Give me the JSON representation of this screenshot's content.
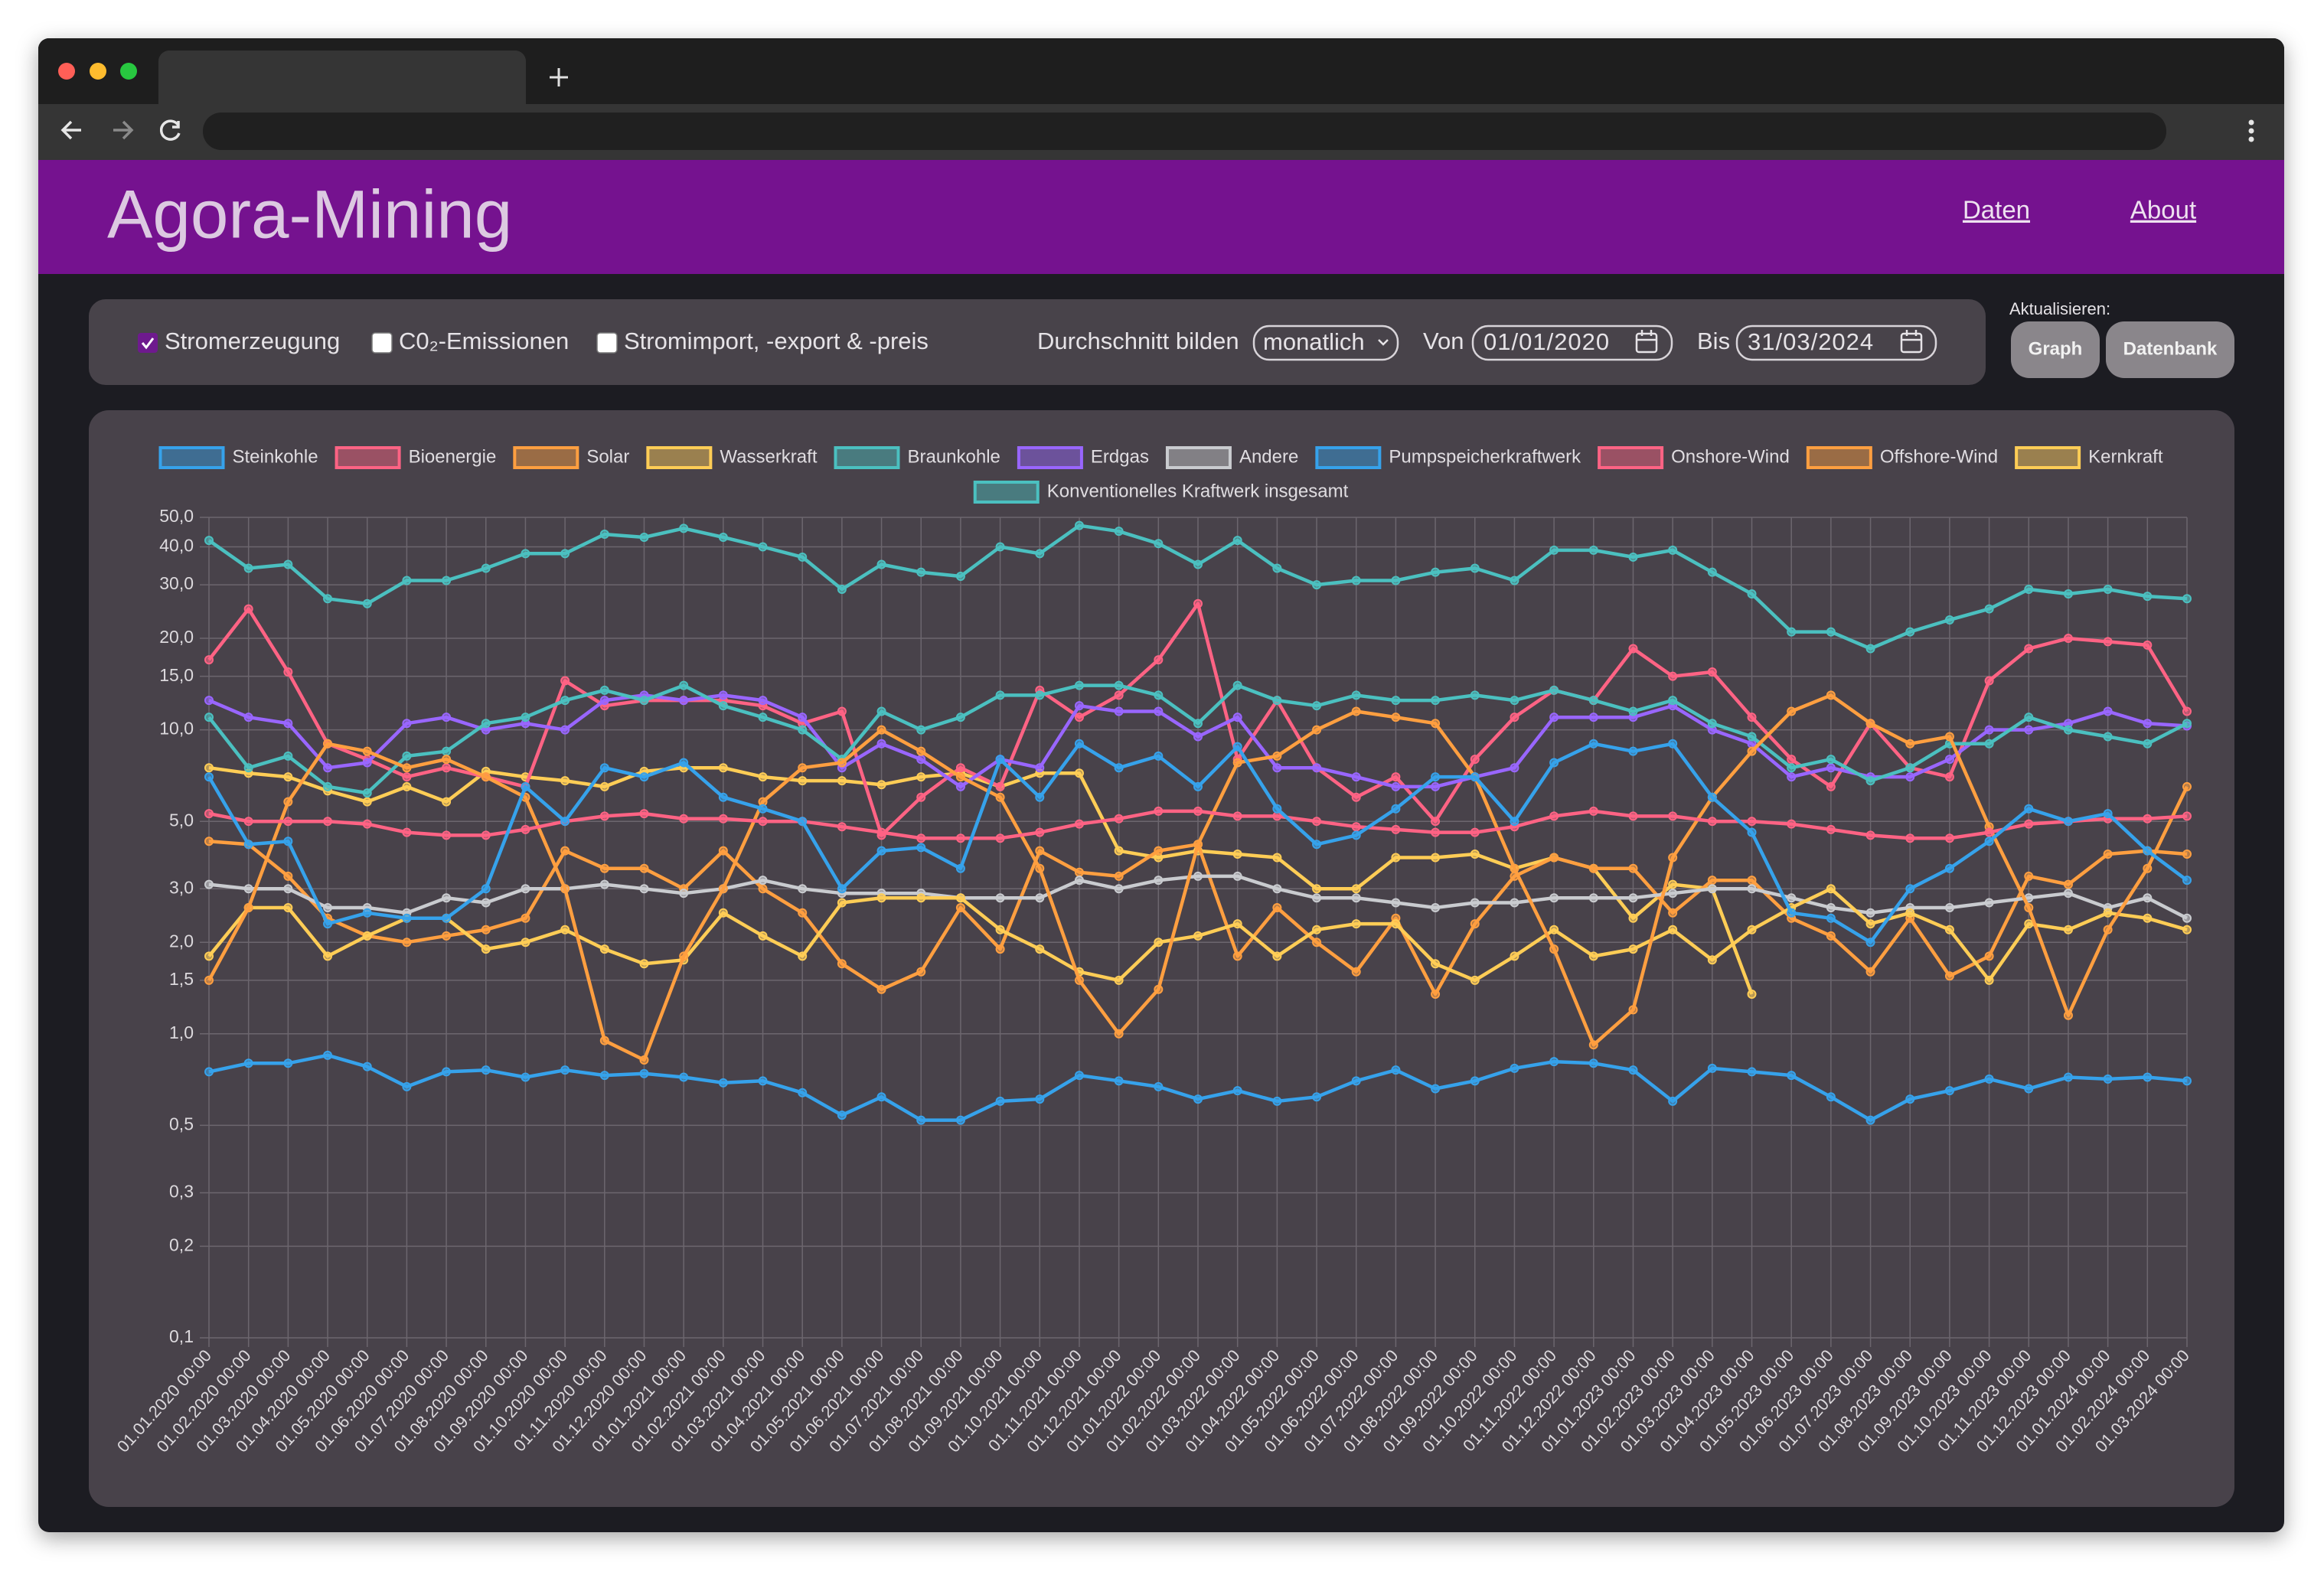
{
  "header": {
    "title": "Agora-Mining",
    "nav": [
      "Daten",
      "About"
    ]
  },
  "controls": {
    "checkboxes": [
      {
        "label": "Stromerzeugung",
        "checked": true
      },
      {
        "label": "C0₂-Emissionen",
        "checked": false
      },
      {
        "label": "Stromimport, -export & -preis",
        "checked": false
      }
    ],
    "average_label": "Durchschnitt bilden",
    "average_value": "monatlich",
    "from_label": "Von",
    "from_value": "01/01/2020",
    "to_label": "Bis",
    "to_value": "31/03/2024",
    "refresh_label": "Aktualisieren:",
    "buttons": [
      "Graph",
      "Datenbank"
    ]
  },
  "chart_data": {
    "type": "line",
    "yscale": "log",
    "grid": true,
    "legend": "top",
    "ylim": [
      0.1,
      50
    ],
    "yticks": [
      {
        "value": 0.1,
        "label": "0,1"
      },
      {
        "value": 0.2,
        "label": "0,2"
      },
      {
        "value": 0.3,
        "label": "0,3"
      },
      {
        "value": 0.5,
        "label": "0,5"
      },
      {
        "value": 1,
        "label": "1,0"
      },
      {
        "value": 1.5,
        "label": "1,5"
      },
      {
        "value": 2,
        "label": "2,0"
      },
      {
        "value": 3,
        "label": "3,0"
      },
      {
        "value": 5,
        "label": "5,0"
      },
      {
        "value": 10,
        "label": "10,0"
      },
      {
        "value": 15,
        "label": "15,0"
      },
      {
        "value": 20,
        "label": "20,0"
      },
      {
        "value": 30,
        "label": "30,0"
      },
      {
        "value": 40,
        "label": "40,0"
      },
      {
        "value": 50,
        "label": "50,0"
      }
    ],
    "categories": [
      "01.01.2020 00:00",
      "01.02.2020 00:00",
      "01.03.2020 00:00",
      "01.04.2020 00:00",
      "01.05.2020 00:00",
      "01.06.2020 00:00",
      "01.07.2020 00:00",
      "01.08.2020 00:00",
      "01.09.2020 00:00",
      "01.10.2020 00:00",
      "01.11.2020 00:00",
      "01.12.2020 00:00",
      "01.01.2021 00:00",
      "01.02.2021 00:00",
      "01.03.2021 00:00",
      "01.04.2021 00:00",
      "01.05.2021 00:00",
      "01.06.2021 00:00",
      "01.07.2021 00:00",
      "01.08.2021 00:00",
      "01.09.2021 00:00",
      "01.10.2021 00:00",
      "01.11.2021 00:00",
      "01.12.2021 00:00",
      "01.01.2022 00:00",
      "01.02.2022 00:00",
      "01.03.2022 00:00",
      "01.04.2022 00:00",
      "01.05.2022 00:00",
      "01.06.2022 00:00",
      "01.07.2022 00:00",
      "01.08.2022 00:00",
      "01.09.2022 00:00",
      "01.10.2022 00:00",
      "01.11.2022 00:00",
      "01.12.2022 00:00",
      "01.01.2023 00:00",
      "01.02.2023 00:00",
      "01.03.2023 00:00",
      "01.04.2023 00:00",
      "01.05.2023 00:00",
      "01.06.2023 00:00",
      "01.07.2023 00:00",
      "01.08.2023 00:00",
      "01.09.2023 00:00",
      "01.10.2023 00:00",
      "01.11.2023 00:00",
      "01.12.2023 00:00",
      "01.01.2024 00:00",
      "01.02.2024 00:00",
      "01.03.2024 00:00"
    ],
    "series": [
      {
        "name": "Steinkohle",
        "color": "#36a2eb",
        "values": [
          7,
          4.2,
          4.3,
          2.3,
          2.5,
          2.4,
          2.4,
          3,
          6.5,
          5,
          7.5,
          7,
          7.8,
          6,
          5.5,
          5,
          3,
          4,
          4.1,
          3.5,
          8,
          6,
          9,
          7.5,
          8.2,
          6.5,
          8.8,
          5.5,
          4.2,
          4.5,
          5.5,
          7,
          7,
          5,
          7.8,
          9,
          8.5,
          9,
          6,
          4.6,
          2.5,
          2.4,
          2,
          3,
          3.5,
          4.3,
          5.5,
          5,
          5.3,
          4,
          3.2
        ]
      },
      {
        "name": "Bioenergie",
        "color": "#ff6384",
        "values": [
          5.3,
          5,
          5,
          5,
          4.9,
          4.6,
          4.5,
          4.5,
          4.7,
          5,
          5.2,
          5.3,
          5.1,
          5.1,
          5,
          5,
          4.8,
          4.6,
          4.4,
          4.4,
          4.4,
          4.6,
          4.9,
          5.1,
          5.4,
          5.4,
          5.2,
          5.2,
          5,
          4.8,
          4.7,
          4.6,
          4.6,
          4.8,
          5.2,
          5.4,
          5.2,
          5.2,
          5,
          5,
          4.9,
          4.7,
          4.5,
          4.4,
          4.4,
          4.6,
          4.9,
          5,
          5.1,
          5.1,
          5.2
        ]
      },
      {
        "name": "Solar",
        "color": "#ff9f40",
        "values": [
          1.5,
          2.6,
          5.8,
          9,
          8.5,
          7.5,
          8,
          7,
          6,
          3,
          0.95,
          0.82,
          1.8,
          3,
          5.8,
          7.5,
          7.8,
          10,
          8.5,
          7,
          6,
          3.5,
          1.5,
          1,
          1.4,
          4.2,
          7.8,
          8.2,
          10,
          11.5,
          11,
          10.5,
          7,
          3.5,
          1.9,
          0.92,
          1.2,
          3.8,
          6,
          8.5,
          11.5,
          13,
          10.5,
          9,
          9.5,
          4.8,
          2.6,
          1.15,
          2.2,
          3.5,
          6.5
        ]
      },
      {
        "name": "Wasserkraft",
        "color": "#ffcd56",
        "values": [
          1.8,
          2.6,
          2.6,
          1.8,
          2.1,
          2.4,
          2.4,
          1.9,
          2,
          2.2,
          1.9,
          1.7,
          1.75,
          2.5,
          2.1,
          1.8,
          2.7,
          2.8,
          2.8,
          2.8,
          2.2,
          1.9,
          1.6,
          1.5,
          2,
          2.1,
          2.3,
          1.8,
          2.2,
          2.3,
          2.3,
          1.7,
          1.5,
          1.8,
          2.2,
          1.8,
          1.9,
          2.2,
          1.75,
          2.2,
          2.6,
          3,
          2.3,
          2.5,
          2.2,
          1.5,
          2.3,
          2.2,
          2.5,
          2.4,
          2.2
        ]
      },
      {
        "name": "Braunkohle",
        "color": "#4bc0c0",
        "values": [
          11,
          7.5,
          8.2,
          6.5,
          6.2,
          8.2,
          8.5,
          10.5,
          11,
          12.5,
          13.5,
          12.5,
          14,
          12,
          11,
          10,
          8,
          11.5,
          10,
          11,
          13,
          13,
          14,
          14,
          13,
          10.5,
          14,
          12.5,
          12,
          13,
          12.5,
          12.5,
          13,
          12.5,
          13.5,
          12.5,
          11.5,
          12.5,
          10.5,
          9.5,
          7.5,
          8,
          6.8,
          7.5,
          9,
          9,
          11,
          10,
          9.5,
          9,
          10.5
        ]
      },
      {
        "name": "Erdgas",
        "color": "#9966ff",
        "values": [
          12.5,
          11,
          10.5,
          7.5,
          7.8,
          10.5,
          11,
          10,
          10.5,
          10,
          12.5,
          13,
          12.5,
          13,
          12.5,
          11,
          7.5,
          9,
          8,
          6.5,
          8,
          7.5,
          12,
          11.5,
          11.5,
          9.5,
          11,
          7.5,
          7.5,
          7,
          6.5,
          6.5,
          7,
          7.5,
          11,
          11,
          11,
          12,
          10,
          9,
          7,
          7.5,
          7,
          7,
          8,
          10,
          10,
          10.5,
          11.5,
          10.5,
          10.3
        ]
      },
      {
        "name": "Andere",
        "color": "#c9cbcf",
        "values": [
          3.1,
          3,
          3,
          2.6,
          2.6,
          2.5,
          2.8,
          2.7,
          3,
          3,
          3.1,
          3,
          2.9,
          3,
          3.2,
          3,
          2.9,
          2.9,
          2.9,
          2.8,
          2.8,
          2.8,
          3.2,
          3,
          3.2,
          3.3,
          3.3,
          3,
          2.8,
          2.8,
          2.7,
          2.6,
          2.7,
          2.7,
          2.8,
          2.8,
          2.8,
          2.9,
          3,
          3,
          2.8,
          2.6,
          2.5,
          2.6,
          2.6,
          2.7,
          2.8,
          2.9,
          2.6,
          2.8,
          2.4
        ]
      },
      {
        "name": "Pumpspeicherkraftwerk",
        "color": "#36a2eb",
        "values": [
          0.75,
          0.8,
          0.8,
          0.85,
          0.78,
          0.67,
          0.75,
          0.76,
          0.72,
          0.76,
          0.73,
          0.74,
          0.72,
          0.69,
          0.7,
          0.64,
          0.54,
          0.62,
          0.52,
          0.52,
          0.6,
          0.61,
          0.73,
          0.7,
          0.67,
          0.61,
          0.65,
          0.6,
          0.62,
          0.7,
          0.76,
          0.66,
          0.7,
          0.77,
          0.81,
          0.8,
          0.76,
          0.6,
          0.77,
          0.75,
          0.73,
          0.62,
          0.52,
          0.61,
          0.65,
          0.71,
          0.66,
          0.72,
          0.71,
          0.72,
          0.7
        ]
      },
      {
        "name": "Onshore-Wind",
        "color": "#ff6384",
        "values": [
          17,
          25,
          15.5,
          9,
          8,
          7,
          7.5,
          7,
          6.5,
          14.5,
          12,
          12.5,
          12.5,
          12.5,
          12,
          10.5,
          11.5,
          4.5,
          6,
          7.5,
          6.5,
          13.5,
          11,
          13,
          17,
          26,
          8,
          12.5,
          7.5,
          6,
          7,
          5,
          8,
          11,
          13.5,
          12.5,
          18.5,
          15,
          15.5,
          11,
          8,
          6.5,
          10.5,
          7.5,
          7,
          14.5,
          18.5,
          20,
          19.5,
          19,
          11.5
        ]
      },
      {
        "name": "Offshore-Wind",
        "color": "#ff9f40",
        "values": [
          4.3,
          4.2,
          3.3,
          2.4,
          2.1,
          2,
          2.1,
          2.2,
          2.4,
          4,
          3.5,
          3.5,
          3,
          4,
          3,
          2.5,
          1.7,
          1.4,
          1.6,
          2.6,
          1.9,
          4,
          3.4,
          3.3,
          4,
          4.2,
          1.8,
          2.6,
          2,
          1.6,
          2.4,
          1.35,
          2.3,
          3.3,
          3.8,
          3.5,
          3.5,
          2.5,
          3.2,
          3.2,
          2.4,
          2.1,
          1.6,
          2.4,
          1.55,
          1.8,
          3.3,
          3.1,
          3.9,
          4,
          3.9
        ]
      },
      {
        "name": "Kernkraft",
        "color": "#ffcd56",
        "values": [
          7.5,
          7.2,
          7,
          6.3,
          5.8,
          6.5,
          5.8,
          7.3,
          7,
          6.8,
          6.5,
          7.3,
          7.5,
          7.5,
          7,
          6.8,
          6.8,
          6.6,
          7,
          7.2,
          6.5,
          7.2,
          7.2,
          4,
          3.8,
          4,
          3.9,
          3.8,
          3,
          3,
          3.8,
          3.8,
          3.9,
          3.5,
          3.8,
          3.5,
          2.4,
          3.1,
          3,
          1.35,
          null,
          null,
          null,
          null,
          null,
          null,
          null,
          null,
          null,
          null,
          null
        ]
      },
      {
        "name": "Konventionelles Kraftwerk insgesamt",
        "color": "#4bc0c0",
        "values": [
          42,
          34,
          35,
          27,
          26,
          31,
          31,
          34,
          38,
          38,
          44,
          43,
          46,
          43,
          40,
          37,
          29,
          35,
          33,
          32,
          40,
          38,
          47,
          45,
          41,
          35,
          42,
          34,
          30,
          31,
          31,
          33,
          34,
          31,
          39,
          39,
          37,
          39,
          33,
          28,
          21,
          21,
          18.5,
          21,
          23,
          25,
          29,
          28,
          29,
          27.5,
          27
        ]
      }
    ]
  }
}
